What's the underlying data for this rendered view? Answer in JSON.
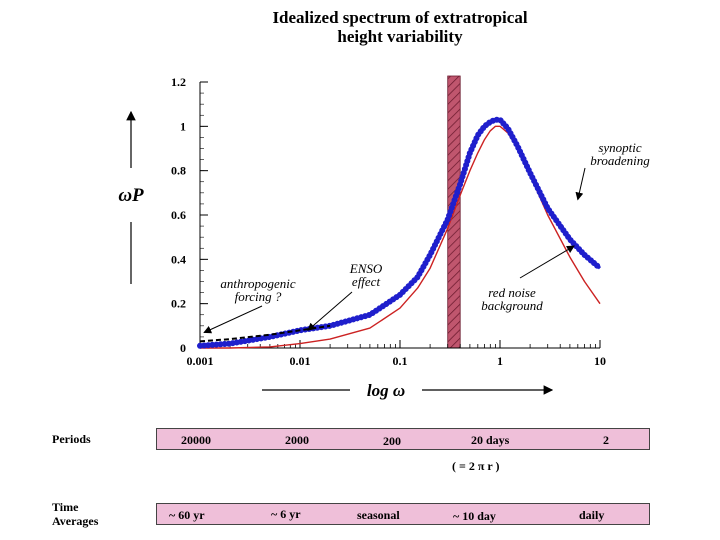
{
  "chart_data": {
    "type": "line",
    "title_line1": "Idealized spectrum of extratropical",
    "title_line2": "height variability",
    "ylabel": "ωP",
    "xlabel": "log  ω",
    "xscale": "log",
    "xlim": [
      0.001,
      10
    ],
    "ylim": [
      0,
      1.2
    ],
    "xticks": [
      "0.001",
      "0.01",
      "0.1",
      "1",
      "10"
    ],
    "yticks": [
      "0",
      "0.2",
      "0.4",
      "0.6",
      "0.8",
      "1",
      "1.2"
    ],
    "grid": false,
    "shaded_band": {
      "from": 0.3,
      "to": 0.4,
      "color": "#c0566e"
    },
    "series": [
      {
        "color": "#1f1fcc",
        "style": "thick-dotted",
        "x": [
          0.001,
          0.002,
          0.005,
          0.01,
          0.02,
          0.05,
          0.1,
          0.15,
          0.2,
          0.3,
          0.4,
          0.5,
          0.6,
          0.7,
          0.8,
          0.9,
          1.0,
          1.2,
          1.5,
          2,
          3,
          5,
          7,
          10
        ],
        "y": [
          0.01,
          0.02,
          0.05,
          0.08,
          0.1,
          0.15,
          0.24,
          0.32,
          0.42,
          0.58,
          0.74,
          0.88,
          0.96,
          1.0,
          1.02,
          1.03,
          1.03,
          0.99,
          0.91,
          0.79,
          0.63,
          0.49,
          0.42,
          0.36
        ]
      },
      {
        "color": "#cc2222",
        "style": "thin",
        "x": [
          0.001,
          0.002,
          0.005,
          0.01,
          0.02,
          0.05,
          0.1,
          0.15,
          0.2,
          0.3,
          0.4,
          0.5,
          0.6,
          0.7,
          0.8,
          0.9,
          1.0,
          1.2,
          1.5,
          2,
          3,
          5,
          7,
          10
        ],
        "y": [
          0.0,
          0.0,
          0.005,
          0.02,
          0.04,
          0.09,
          0.18,
          0.27,
          0.36,
          0.54,
          0.69,
          0.8,
          0.88,
          0.94,
          0.98,
          1.0,
          1.0,
          0.97,
          0.9,
          0.78,
          0.6,
          0.41,
          0.3,
          0.2
        ]
      },
      {
        "color": "#000000",
        "style": "dashed",
        "x": [
          0.001,
          0.002,
          0.005,
          0.01,
          0.02
        ],
        "y": [
          0.03,
          0.04,
          0.06,
          0.08,
          0.1
        ]
      }
    ],
    "annotations": [
      {
        "text_lines": [
          "anthropogenic",
          "forcing ?"
        ],
        "arrow_to": [
          0.0011,
          0.07
        ]
      },
      {
        "text_lines": [
          "ENSO",
          "effect"
        ],
        "arrow_to": [
          0.012,
          0.08
        ]
      },
      {
        "text_lines": [
          "red noise",
          "background"
        ],
        "arrow_to": [
          5.5,
          0.46
        ]
      },
      {
        "text_lines": [
          "synoptic",
          "broadening"
        ],
        "arrow_to": [
          6.0,
          0.67
        ]
      }
    ]
  },
  "periods": {
    "label": "Periods",
    "items": [
      "20000",
      "2000",
      "200",
      "20 days",
      "2"
    ],
    "note": "( = 2 π r )"
  },
  "time_averages": {
    "label_line1": "Time",
    "label_line2": "Averages",
    "items": [
      "~ 60 yr",
      "~ 6 yr",
      "seasonal",
      "~ 10  day",
      "daily"
    ]
  }
}
